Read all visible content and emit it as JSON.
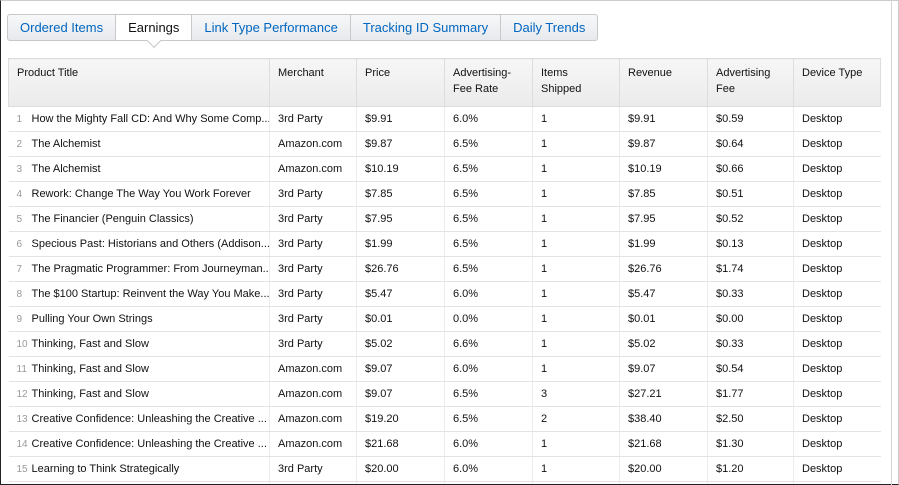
{
  "tabs": {
    "items": [
      "Ordered Items",
      "Earnings",
      "Link Type Performance",
      "Tracking ID Summary",
      "Daily Trends"
    ],
    "active": 1
  },
  "table": {
    "headers": [
      "Product Title",
      "Merchant",
      "Price",
      "Advertising-Fee Rate",
      "Items Shipped",
      "Revenue",
      "Advertising Fee",
      "Device Type"
    ],
    "rows": [
      [
        "1",
        "How the Mighty Fall CD: And Why Some Comp...",
        "3rd Party",
        "$9.91",
        "6.0%",
        "1",
        "$9.91",
        "$0.59",
        "Desktop"
      ],
      [
        "2",
        "The Alchemist",
        "Amazon.com",
        "$9.87",
        "6.5%",
        "1",
        "$9.87",
        "$0.64",
        "Desktop"
      ],
      [
        "3",
        "The Alchemist",
        "Amazon.com",
        "$10.19",
        "6.5%",
        "1",
        "$10.19",
        "$0.66",
        "Desktop"
      ],
      [
        "4",
        "Rework: Change The Way You Work Forever",
        "3rd Party",
        "$7.85",
        "6.5%",
        "1",
        "$7.85",
        "$0.51",
        "Desktop"
      ],
      [
        "5",
        "The Financier (Penguin Classics)",
        "3rd Party",
        "$7.95",
        "6.5%",
        "1",
        "$7.95",
        "$0.52",
        "Desktop"
      ],
      [
        "6",
        "Specious Past: Historians and Others (Addison...",
        "3rd Party",
        "$1.99",
        "6.5%",
        "1",
        "$1.99",
        "$0.13",
        "Desktop"
      ],
      [
        "7",
        "The Pragmatic Programmer: From Journeyman...",
        "3rd Party",
        "$26.76",
        "6.5%",
        "1",
        "$26.76",
        "$1.74",
        "Desktop"
      ],
      [
        "8",
        "The $100 Startup: Reinvent the Way You Make...",
        "3rd Party",
        "$5.47",
        "6.0%",
        "1",
        "$5.47",
        "$0.33",
        "Desktop"
      ],
      [
        "9",
        "Pulling Your Own Strings",
        "3rd Party",
        "$0.01",
        "0.0%",
        "1",
        "$0.01",
        "$0.00",
        "Desktop"
      ],
      [
        "10",
        "Thinking, Fast and Slow",
        "3rd Party",
        "$5.02",
        "6.6%",
        "1",
        "$5.02",
        "$0.33",
        "Desktop"
      ],
      [
        "11",
        "Thinking, Fast and Slow",
        "Amazon.com",
        "$9.07",
        "6.0%",
        "1",
        "$9.07",
        "$0.54",
        "Desktop"
      ],
      [
        "12",
        "Thinking, Fast and Slow",
        "Amazon.com",
        "$9.07",
        "6.5%",
        "3",
        "$27.21",
        "$1.77",
        "Desktop"
      ],
      [
        "13",
        "Creative Confidence: Unleashing the Creative ...",
        "Amazon.com",
        "$19.20",
        "6.5%",
        "2",
        "$38.40",
        "$2.50",
        "Desktop"
      ],
      [
        "14",
        "Creative Confidence: Unleashing the Creative ...",
        "Amazon.com",
        "$21.68",
        "6.0%",
        "1",
        "$21.68",
        "$1.30",
        "Desktop"
      ],
      [
        "15",
        "Learning to Think Strategically",
        "3rd Party",
        "$20.00",
        "6.0%",
        "1",
        "$20.00",
        "$1.20",
        "Desktop"
      ]
    ]
  }
}
